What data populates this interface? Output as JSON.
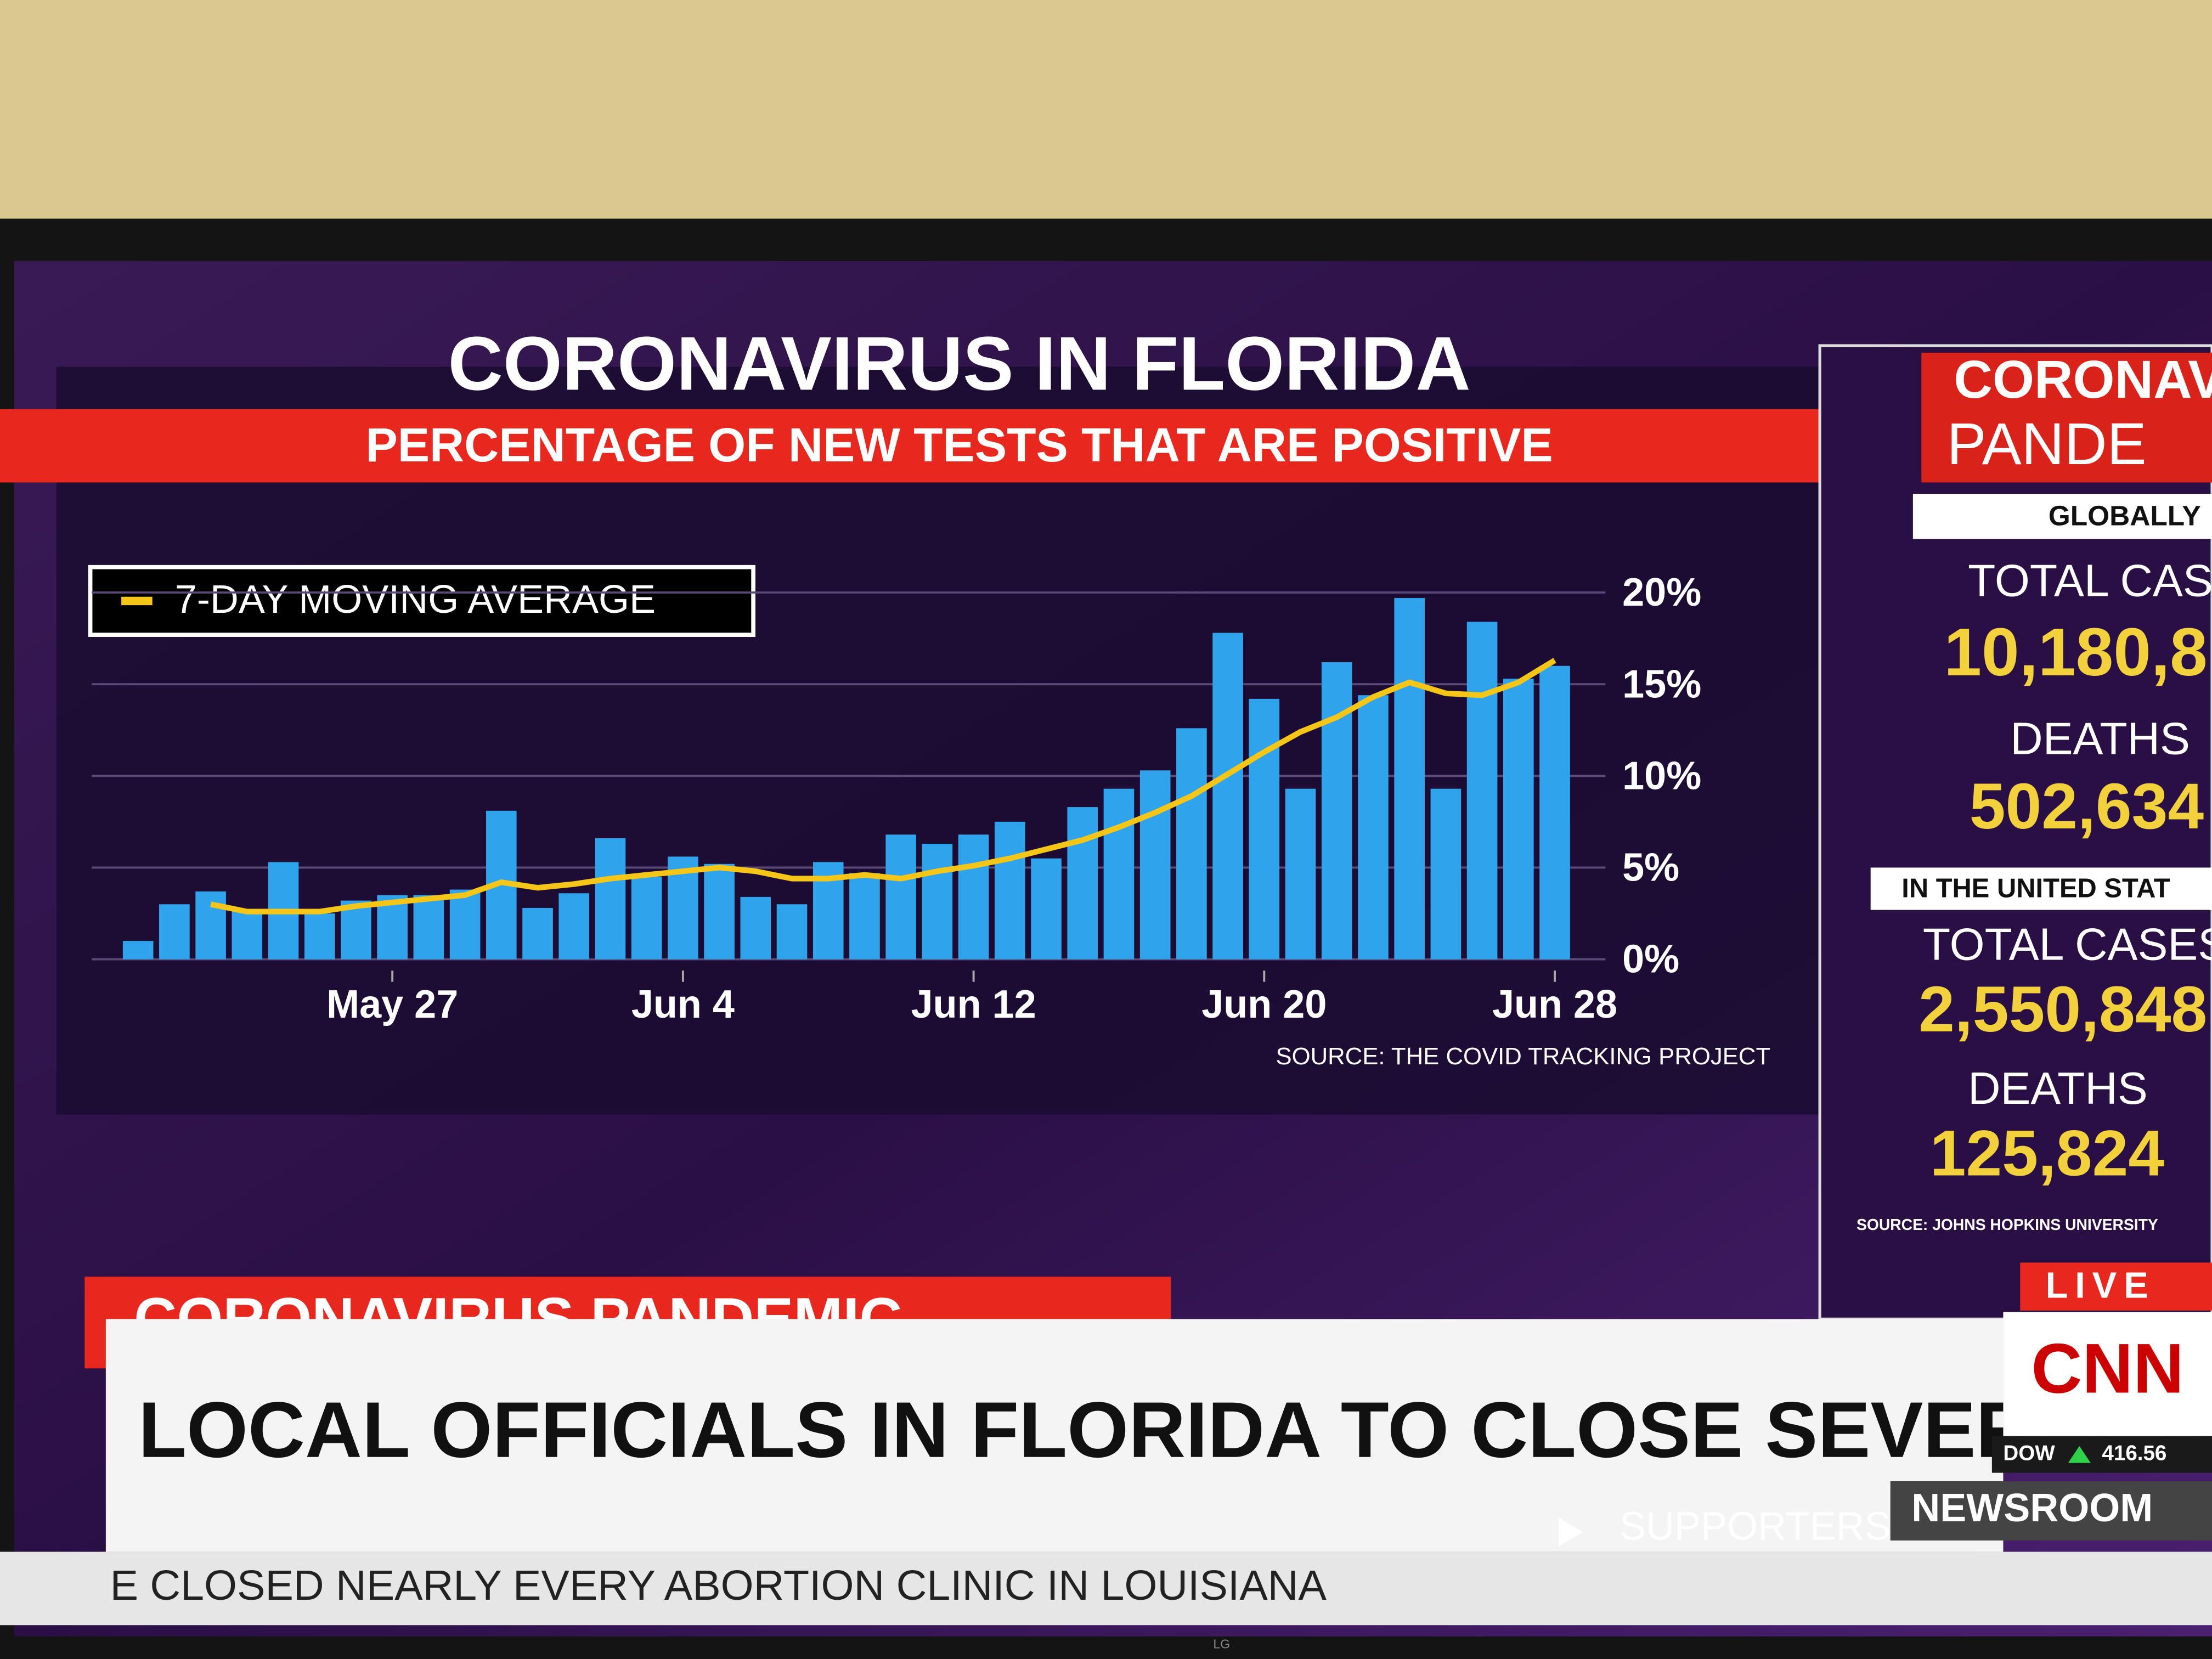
{
  "chart_data": {
    "type": "bar",
    "title": "CORONAVIRUS IN FLORIDA",
    "subtitle": "PERCENTAGE OF NEW TESTS THAT ARE POSITIVE",
    "source": "SOURCE: THE COVID TRACKING PROJECT",
    "categories": [
      null,
      null,
      null,
      null,
      null,
      null,
      null,
      "May 27",
      null,
      null,
      null,
      null,
      null,
      null,
      null,
      "Jun 4",
      null,
      null,
      null,
      null,
      null,
      null,
      null,
      "Jun 12",
      null,
      null,
      null,
      null,
      null,
      null,
      null,
      "Jun 20",
      null,
      null,
      null,
      null,
      null,
      null,
      null,
      "Jun 28"
    ],
    "values": [
      1.0,
      3.0,
      3.7,
      2.7,
      5.3,
      2.5,
      3.2,
      3.5,
      3.5,
      3.8,
      8.1,
      2.8,
      3.6,
      6.6,
      4.5,
      5.6,
      5.2,
      3.4,
      3.0,
      5.3,
      4.7,
      6.8,
      6.3,
      6.8,
      7.5,
      5.5,
      8.3,
      9.3,
      10.3,
      12.6,
      17.8,
      14.2,
      9.3,
      16.2,
      14.4,
      19.7,
      9.3,
      18.4,
      15.3,
      16.0
    ],
    "color": "#2fa3ec",
    "line": {
      "name": "7-DAY MOVING AVERAGE",
      "color": "#f5c518",
      "values": [
        null,
        null,
        3.0,
        2.6,
        2.6,
        2.6,
        2.9,
        3.1,
        3.3,
        3.5,
        4.2,
        3.9,
        4.1,
        4.4,
        4.6,
        4.8,
        5.0,
        4.8,
        4.4,
        4.4,
        4.6,
        4.4,
        4.8,
        5.1,
        5.5,
        6.0,
        6.5,
        7.2,
        8.0,
        8.9,
        10.1,
        11.3,
        12.4,
        13.2,
        14.3,
        15.1,
        14.5,
        14.4,
        15.1,
        16.3
      ]
    },
    "ylim": [
      0,
      21
    ],
    "yticks": [
      {
        "value": 0,
        "label": "0%"
      },
      {
        "value": 5,
        "label": "5%"
      },
      {
        "value": 10,
        "label": "10%"
      },
      {
        "value": 15,
        "label": "15%"
      },
      {
        "value": 20,
        "label": "20%"
      }
    ],
    "grid": true,
    "legend": "upper left"
  },
  "side_panel": {
    "header": [
      "CORONAV",
      "PANDE"
    ],
    "globally": "GLOBALLY",
    "global_cases_label": "TOTAL CAS",
    "global_cases": "10,180,8",
    "global_deaths_label": "DEATHS",
    "global_deaths": "502,634",
    "us": "IN THE UNITED STAT",
    "us_cases_label": "TOTAL CASES",
    "us_cases": "2,550,848",
    "us_deaths_label": "DEATHS",
    "us_deaths": "125,824",
    "source": "SOURCE: JOHNS HOPKINS UNIVERSITY"
  },
  "lower_third": {
    "tag": "CORONAVIRUS PANDEMIC",
    "headline": "LOCAL OFFICIALS IN FLORIDA TO CLOSE SEVERAL BEACHES",
    "live": "LIVE",
    "network": "CNN",
    "dow_label": "DOW",
    "dow_value": "416.56",
    "show": "NEWSROOM",
    "ticker": [
      "E CLOSED NEARLY EVERY ABORTION CLINIC IN LOUISIANA",
      "SUPPORTERS"
    ]
  },
  "tv_brand": "LG"
}
